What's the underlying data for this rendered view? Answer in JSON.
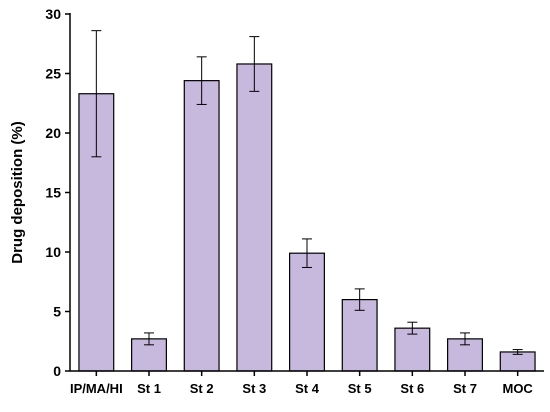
{
  "chart_data": {
    "type": "bar",
    "title": "",
    "xlabel": "",
    "ylabel": "Drug deposition (%)",
    "ylim": [
      0,
      30
    ],
    "yticks": [
      0,
      5,
      10,
      15,
      20,
      25,
      30
    ],
    "categories": [
      "IP/MA/HI",
      "St 1",
      "St 2",
      "St 3",
      "St 4",
      "St 5",
      "St 6",
      "St 7",
      "MOC"
    ],
    "values": [
      23.3,
      2.7,
      24.4,
      25.8,
      9.9,
      6.0,
      3.6,
      2.7,
      1.6
    ],
    "error": [
      5.3,
      0.5,
      2.0,
      2.3,
      1.2,
      0.9,
      0.5,
      0.5,
      0.2
    ],
    "grid": false,
    "legend": "none",
    "colors": {
      "bar_fill": "#c7b9dd",
      "bar_stroke": "#000000"
    }
  }
}
